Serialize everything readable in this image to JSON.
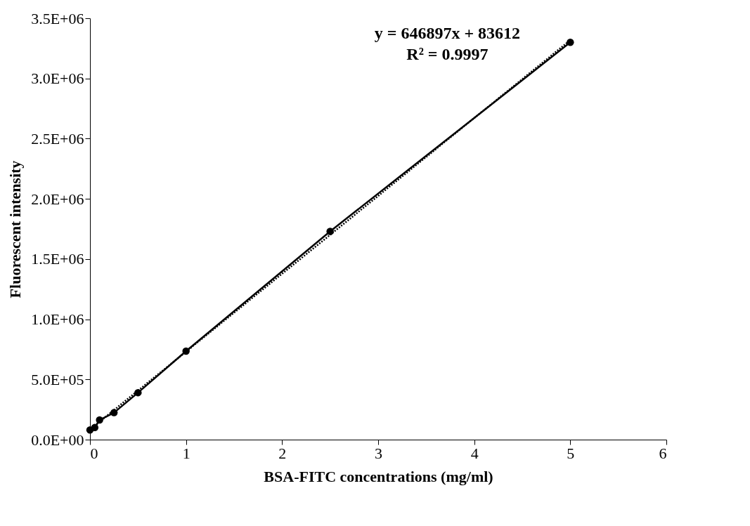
{
  "chart_data": {
    "type": "line",
    "xlabel": "BSA-FITC concentrations (mg/ml)",
    "ylabel": "Fluorescent intensity",
    "series": [
      {
        "color": "#000000",
        "x": [
          0,
          0.05,
          0.1,
          0.25,
          0.5,
          1,
          2.5,
          5
        ],
        "values": [
          80000,
          100000,
          163000,
          224000,
          390000,
          735000,
          1730000,
          3300000
        ],
        "marker": "circle",
        "line_style": "solid"
      },
      {
        "type": "line",
        "color": "#000000",
        "x": [
          0,
          5
        ],
        "values": [
          84000,
          3318000
        ],
        "line_style": "dotted"
      }
    ],
    "annotations": [
      "y = 646897x + 83612",
      "R² = 0.9997"
    ],
    "xlim": [
      0,
      6
    ],
    "xticks": [
      0,
      1,
      2,
      3,
      4,
      5,
      6
    ],
    "ylim": [
      0,
      3500000
    ],
    "yticks": [
      {
        "value": 0,
        "label": "0.0E+00"
      },
      {
        "value": 500000,
        "label": "5.0E+05"
      },
      {
        "value": 1000000,
        "label": "1.0E+06"
      },
      {
        "value": 1500000,
        "label": "1.5E+06"
      },
      {
        "value": 2000000,
        "label": "2.0E+06"
      },
      {
        "value": 2500000,
        "label": "2.5E+06"
      },
      {
        "value": 3000000,
        "label": "3.0E+06"
      },
      {
        "value": 3500000,
        "label": "3.5E+06"
      }
    ],
    "grid": false
  }
}
